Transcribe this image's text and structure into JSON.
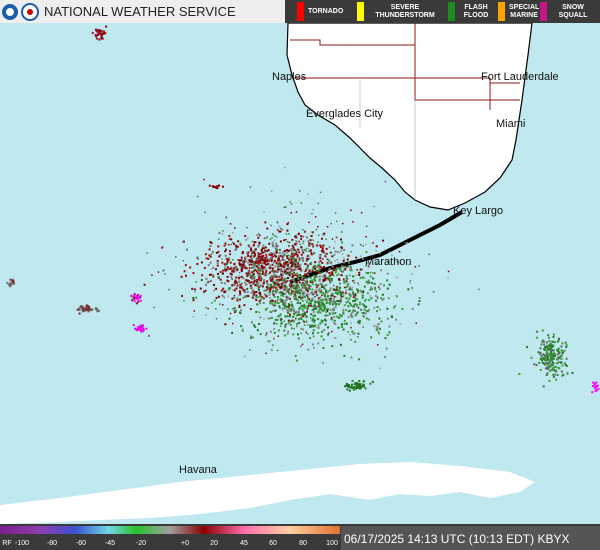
{
  "header": {
    "title": "NATIONAL WEATHER SERVICE"
  },
  "warnings": [
    {
      "label": "TORNADO",
      "color": "#ff0000"
    },
    {
      "label": "SEVERE THUNDERSTORM",
      "color": "#ffff00"
    },
    {
      "label": "FLASH FLOOD",
      "color": "#1e8c1e"
    },
    {
      "label": "SPECIAL MARINE",
      "color": "#ffa500"
    },
    {
      "label": "SNOW SQUALL",
      "color": "#c71585"
    }
  ],
  "cities": [
    "Naples",
    "Fort Lauderdale",
    "Everglades City",
    "Miami",
    "Key Largo",
    "Marathon",
    "Havana"
  ],
  "colorbar": {
    "labels": [
      "RF",
      "-100",
      "-80",
      "-60",
      "-45",
      "-20",
      "+0",
      "20",
      "45",
      "60",
      "80",
      "100"
    ]
  },
  "timestamp": "06/17/2025 14:13 UTC (10:13 EDT) KBYX"
}
